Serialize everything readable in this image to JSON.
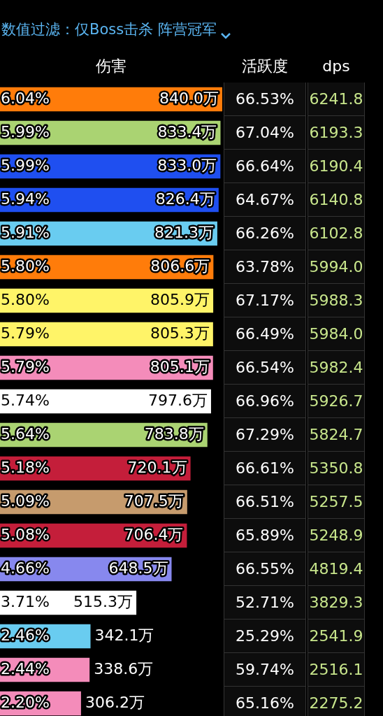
{
  "chart_data": [
    {
      "type": "bar",
      "orientation": "horizontal",
      "title": "伤害",
      "subtitle": "数值过滤：仅Boss击杀 阵营冠军",
      "categories": [
        null,
        null,
        null,
        null,
        null,
        null,
        null,
        null,
        null,
        null,
        null,
        null,
        null,
        null,
        null,
        null,
        null,
        null,
        null
      ],
      "values": [
        840.0,
        833.4,
        833.0,
        826.4,
        821.3,
        806.6,
        805.9,
        805.3,
        805.1,
        797.6,
        783.8,
        720.1,
        707.5,
        706.4,
        648.5,
        515.3,
        342.1,
        338.6,
        306.2
      ],
      "colors": [
        "#ff7c0a",
        "#aad372",
        "#1f4ff0",
        "#1f4ff0",
        "#69ccf0",
        "#ff7c0a",
        "#fff468",
        "#fff468",
        "#f48cba",
        "#ffffff",
        "#aad372",
        "#c41e3a",
        "#c69b6d",
        "#c41e3a",
        "#8788ee",
        "#ffffff",
        "#69ccf0",
        "#f48cba",
        "#f48cba"
      ],
      "value_labels": [
        "840.0万",
        "833.4万",
        "833.0万",
        "826.4万",
        "821.3万",
        "806.6万",
        "805.9万",
        "805.3万",
        "805.1万",
        "797.6万",
        "783.8万",
        "720.1万",
        "707.5万",
        "706.4万",
        "648.5万",
        "515.3万",
        "342.1万",
        "338.6万",
        "306.2万"
      ],
      "annotations": [
        "6.04%",
        "5.99%",
        "5.99%",
        "5.94%",
        "5.91%",
        "5.80%",
        "5.80%",
        "5.79%",
        "5.79%",
        "5.74%",
        "5.64%",
        "5.18%",
        "5.09%",
        "5.08%",
        "4.66%",
        "3.71%",
        "2.46%",
        "2.44%",
        "2.20%"
      ]
    },
    {
      "type": "other",
      "title": "活跃度",
      "annotations": [
        "66.53%",
        "67.04%",
        "66.64%",
        "64.67%",
        "66.26%",
        "63.78%",
        "67.17%",
        "66.49%",
        "66.54%",
        "66.96%",
        "67.29%",
        "66.61%",
        "66.51%",
        "65.89%",
        "66.55%",
        "52.71%",
        "25.29%",
        "59.74%",
        "65.16%"
      ]
    },
    {
      "type": "other",
      "title": "dps",
      "annotations": [
        "6241.8",
        "6193.3",
        "6190.4",
        "6140.8",
        "6102.8",
        "5994.0",
        "5988.3",
        "5984.0",
        "5982.4",
        "5926.7",
        "5824.7",
        "5350.8",
        "5257.5",
        "5248.9",
        "4819.4",
        "3829.3",
        "2541.9",
        "2516.1",
        "2275.2"
      ]
    }
  ]
}
